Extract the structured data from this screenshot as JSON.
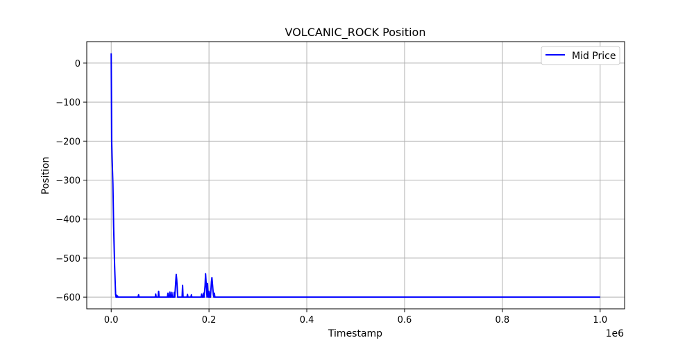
{
  "chart_data": {
    "type": "line",
    "title": "VOLCANIC_ROCK Position",
    "xlabel": "Timestamp",
    "ylabel": "Position",
    "x_offset_label": "1e6",
    "xlim": [
      -50000,
      1050000
    ],
    "ylim": [
      -630,
      55
    ],
    "x_ticks": [
      0,
      200000,
      400000,
      600000,
      800000,
      1000000
    ],
    "x_tick_labels": [
      "0.0",
      "0.2",
      "0.4",
      "0.6",
      "0.8",
      "1.0"
    ],
    "y_ticks": [
      0,
      -100,
      -200,
      -300,
      -400,
      -500,
      -600
    ],
    "y_tick_labels": [
      "0",
      "−100",
      "−200",
      "−300",
      "−400",
      "−500",
      "−600"
    ],
    "grid": true,
    "legend_position": "upper-right",
    "series": [
      {
        "name": "Mid Price",
        "color": "#0000ff",
        "x": [
          0,
          1000,
          2000,
          3500,
          5000,
          7000,
          9000,
          10000,
          11000,
          12000,
          13000,
          14000,
          55000,
          56000,
          57000,
          90000,
          91000,
          92000,
          96000,
          97000,
          98000,
          115000,
          116000,
          117000,
          119000,
          120000,
          121000,
          123000,
          124000,
          125000,
          128000,
          129000,
          130000,
          131000,
          132000,
          133000,
          134000,
          135000,
          136000,
          138000,
          145000,
          146000,
          147000,
          155000,
          156000,
          157000,
          163000,
          164000,
          165000,
          184000,
          185000,
          186000,
          188000,
          189000,
          190000,
          191000,
          192000,
          193000,
          194000,
          195000,
          196000,
          197000,
          198000,
          199000,
          200000,
          201000,
          202000,
          203000,
          204000,
          205000,
          206000,
          207000,
          208000,
          209000,
          210000,
          211000,
          212000,
          214000,
          220000,
          1000000
        ],
        "y": [
          25,
          -200,
          -250,
          -310,
          -420,
          -520,
          -593,
          -600,
          -595,
          -600,
          -597,
          -600,
          -600,
          -594,
          -600,
          -600,
          -592,
          -600,
          -600,
          -585,
          -600,
          -600,
          -590,
          -600,
          -600,
          -587,
          -600,
          -600,
          -588,
          -600,
          -600,
          -588,
          -600,
          -580,
          -560,
          -542,
          -555,
          -575,
          -600,
          -600,
          -600,
          -570,
          -600,
          -600,
          -593,
          -600,
          -600,
          -594,
          -600,
          -600,
          -592,
          -600,
          -600,
          -590,
          -600,
          -585,
          -570,
          -540,
          -560,
          -580,
          -600,
          -565,
          -590,
          -600,
          -585,
          -600,
          -590,
          -600,
          -580,
          -560,
          -550,
          -565,
          -580,
          -595,
          -600,
          -590,
          -600,
          -600,
          -600,
          -600
        ]
      }
    ]
  }
}
